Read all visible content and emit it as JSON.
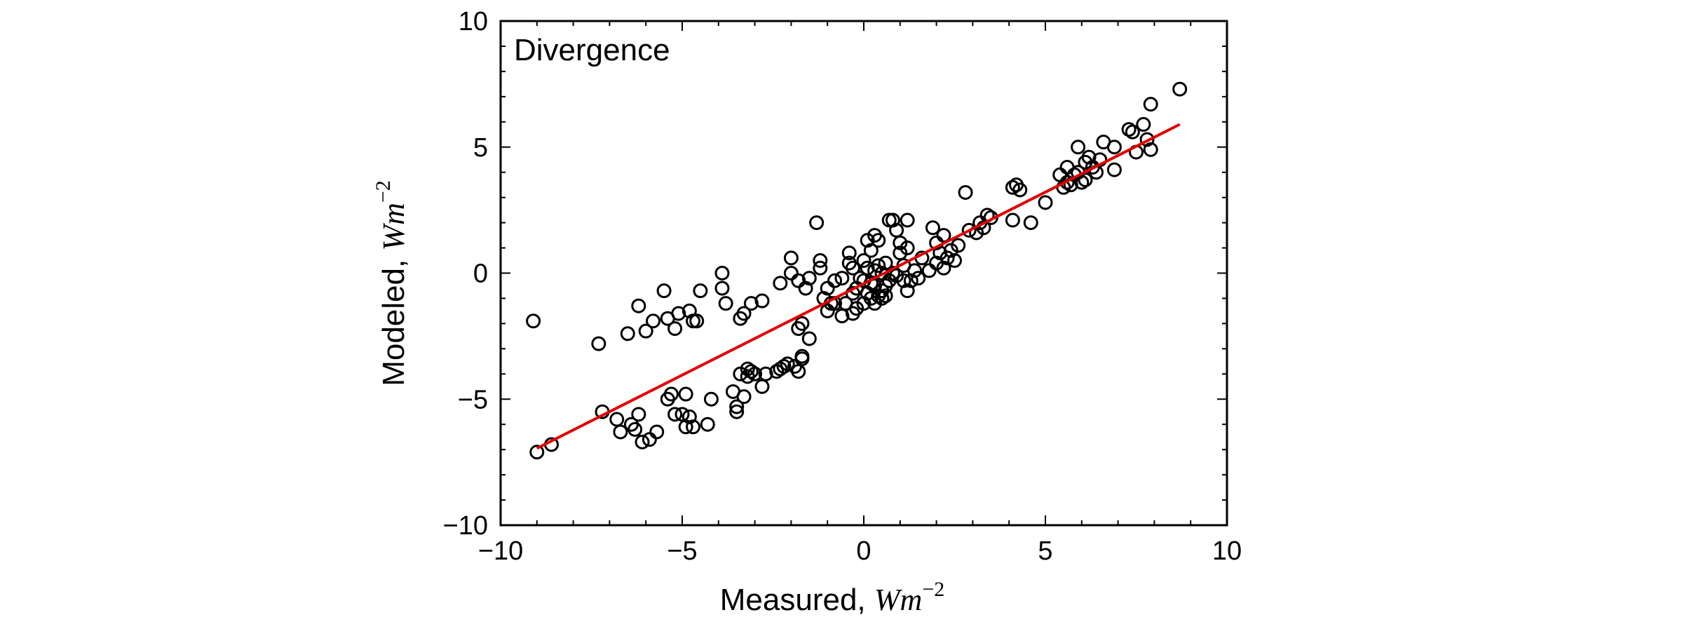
{
  "chart_data": {
    "type": "scatter",
    "annotation": "Divergence",
    "xlabel": {
      "text": "Measured, ",
      "unit": "Wm",
      "exponent": "−2"
    },
    "ylabel": {
      "text": "Modeled, ",
      "unit": "Wm",
      "exponent": "−2"
    },
    "xlim": [
      -10,
      10
    ],
    "ylim": [
      -10,
      10
    ],
    "x_ticks": [
      -10,
      -5,
      0,
      5,
      10
    ],
    "y_ticks": [
      -10,
      -5,
      0,
      5,
      10
    ],
    "x_tick_labels": [
      "−10",
      "−5",
      "0",
      "5",
      "10"
    ],
    "y_tick_labels": [
      "−10",
      "−5",
      "0",
      "5",
      "10"
    ],
    "grid": false,
    "marker_color": "#000000",
    "line_color": "#e00000",
    "fit_line": {
      "x": [
        -9.0,
        8.7
      ],
      "y": [
        -6.95,
        5.9
      ]
    },
    "points": [
      [
        -9.1,
        -1.9
      ],
      [
        -9.0,
        -7.1
      ],
      [
        -8.6,
        -6.8
      ],
      [
        -7.3,
        -2.8
      ],
      [
        -7.2,
        -5.5
      ],
      [
        -6.8,
        -5.8
      ],
      [
        -6.7,
        -6.3
      ],
      [
        -6.5,
        -2.4
      ],
      [
        -6.4,
        -6.0
      ],
      [
        -6.3,
        -6.2
      ],
      [
        -6.2,
        -1.3
      ],
      [
        -6.2,
        -5.6
      ],
      [
        -6.1,
        -6.7
      ],
      [
        -6.0,
        -2.3
      ],
      [
        -5.9,
        -6.6
      ],
      [
        -5.8,
        -1.9
      ],
      [
        -5.7,
        -6.3
      ],
      [
        -5.5,
        -0.7
      ],
      [
        -5.4,
        -5.0
      ],
      [
        -5.4,
        -1.8
      ],
      [
        -5.3,
        -4.8
      ],
      [
        -5.2,
        -5.6
      ],
      [
        -5.2,
        -2.2
      ],
      [
        -5.1,
        -1.6
      ],
      [
        -5.0,
        -5.6
      ],
      [
        -4.9,
        -4.8
      ],
      [
        -4.9,
        -6.1
      ],
      [
        -4.8,
        -1.5
      ],
      [
        -4.8,
        -5.7
      ],
      [
        -4.7,
        -1.9
      ],
      [
        -4.7,
        -6.1
      ],
      [
        -4.6,
        -1.9
      ],
      [
        -4.5,
        -0.7
      ],
      [
        -4.3,
        -6.0
      ],
      [
        -4.2,
        -5.0
      ],
      [
        -3.9,
        0.0
      ],
      [
        -3.9,
        -0.6
      ],
      [
        -3.8,
        -1.2
      ],
      [
        -3.6,
        -4.7
      ],
      [
        -3.5,
        -5.3
      ],
      [
        -3.5,
        -5.5
      ],
      [
        -3.4,
        -4.0
      ],
      [
        -3.4,
        -1.8
      ],
      [
        -3.3,
        -1.6
      ],
      [
        -3.3,
        -4.9
      ],
      [
        -3.2,
        -3.8
      ],
      [
        -3.2,
        -4.1
      ],
      [
        -3.1,
        -1.2
      ],
      [
        -3.1,
        -3.9
      ],
      [
        -3.0,
        -4.0
      ],
      [
        -2.8,
        -1.1
      ],
      [
        -2.8,
        -4.5
      ],
      [
        -2.7,
        -4.0
      ],
      [
        -2.4,
        -3.9
      ],
      [
        -2.3,
        -3.8
      ],
      [
        -2.3,
        -0.4
      ],
      [
        -2.2,
        -3.7
      ],
      [
        -2.1,
        -3.6
      ],
      [
        -2.0,
        0.6
      ],
      [
        -2.0,
        0.0
      ],
      [
        -1.9,
        -3.7
      ],
      [
        -1.8,
        -2.2
      ],
      [
        -1.8,
        -3.9
      ],
      [
        -1.8,
        -0.3
      ],
      [
        -1.7,
        -3.4
      ],
      [
        -1.7,
        -2.0
      ],
      [
        -1.7,
        -3.3
      ],
      [
        -1.6,
        -0.6
      ],
      [
        -1.5,
        -0.2
      ],
      [
        -1.5,
        -2.6
      ],
      [
        -1.3,
        2.0
      ],
      [
        -1.2,
        0.5
      ],
      [
        -1.2,
        0.2
      ],
      [
        -1.1,
        -1.0
      ],
      [
        -1.0,
        -1.5
      ],
      [
        -1.0,
        -0.6
      ],
      [
        -0.9,
        -1.2
      ],
      [
        -0.8,
        -1.2
      ],
      [
        -0.8,
        -0.3
      ],
      [
        -0.6,
        -1.7
      ],
      [
        -0.6,
        -0.2
      ],
      [
        -0.5,
        -1.2
      ],
      [
        -0.4,
        0.8
      ],
      [
        -0.4,
        0.4
      ],
      [
        -0.3,
        -1.6
      ],
      [
        -0.3,
        -0.8
      ],
      [
        -0.3,
        0.2
      ],
      [
        -0.2,
        -1.4
      ],
      [
        -0.2,
        -0.6
      ],
      [
        -0.1,
        -0.2
      ],
      [
        0.0,
        -1.2
      ],
      [
        0.0,
        -0.3
      ],
      [
        0.0,
        0.5
      ],
      [
        0.1,
        1.3
      ],
      [
        0.1,
        -0.8
      ],
      [
        0.1,
        0.2
      ],
      [
        0.2,
        -1.0
      ],
      [
        0.2,
        -0.4
      ],
      [
        0.2,
        0.9
      ],
      [
        0.3,
        1.5
      ],
      [
        0.3,
        -1.2
      ],
      [
        0.3,
        -0.5
      ],
      [
        0.3,
        0.1
      ],
      [
        0.4,
        -0.9
      ],
      [
        0.4,
        1.3
      ],
      [
        0.4,
        0.3
      ],
      [
        0.5,
        -0.7
      ],
      [
        0.5,
        -1.0
      ],
      [
        0.5,
        0.0
      ],
      [
        0.6,
        -0.5
      ],
      [
        0.6,
        -0.9
      ],
      [
        0.6,
        0.4
      ],
      [
        0.7,
        -0.3
      ],
      [
        0.7,
        2.1
      ],
      [
        0.8,
        2.1
      ],
      [
        0.8,
        0.0
      ],
      [
        0.9,
        1.7
      ],
      [
        0.9,
        -0.1
      ],
      [
        1.0,
        0.8
      ],
      [
        1.0,
        1.2
      ],
      [
        1.1,
        -0.3
      ],
      [
        1.1,
        0.3
      ],
      [
        1.2,
        -0.7
      ],
      [
        1.2,
        2.1
      ],
      [
        1.2,
        1.0
      ],
      [
        1.3,
        -0.3
      ],
      [
        1.4,
        0.1
      ],
      [
        1.5,
        -0.2
      ],
      [
        1.6,
        0.6
      ],
      [
        1.8,
        0.1
      ],
      [
        1.9,
        1.8
      ],
      [
        2.0,
        0.4
      ],
      [
        2.0,
        1.2
      ],
      [
        2.1,
        0.8
      ],
      [
        2.2,
        1.5
      ],
      [
        2.2,
        0.2
      ],
      [
        2.3,
        0.6
      ],
      [
        2.4,
        0.9
      ],
      [
        2.5,
        0.5
      ],
      [
        2.6,
        1.1
      ],
      [
        2.8,
        3.2
      ],
      [
        2.9,
        1.7
      ],
      [
        3.1,
        1.6
      ],
      [
        3.2,
        2.0
      ],
      [
        3.3,
        1.8
      ],
      [
        3.4,
        2.3
      ],
      [
        3.5,
        2.2
      ],
      [
        4.1,
        3.4
      ],
      [
        4.1,
        2.1
      ],
      [
        4.2,
        3.5
      ],
      [
        4.3,
        3.3
      ],
      [
        4.6,
        2.0
      ],
      [
        5.0,
        2.8
      ],
      [
        5.4,
        3.9
      ],
      [
        5.5,
        3.4
      ],
      [
        5.6,
        4.2
      ],
      [
        5.6,
        3.6
      ],
      [
        5.7,
        3.5
      ],
      [
        5.8,
        3.9
      ],
      [
        5.9,
        5.0
      ],
      [
        5.9,
        4.0
      ],
      [
        6.0,
        3.6
      ],
      [
        6.1,
        3.7
      ],
      [
        6.1,
        4.4
      ],
      [
        6.2,
        4.6
      ],
      [
        6.3,
        4.2
      ],
      [
        6.4,
        4.0
      ],
      [
        6.5,
        4.5
      ],
      [
        6.6,
        5.2
      ],
      [
        6.9,
        5.0
      ],
      [
        6.9,
        4.1
      ],
      [
        7.3,
        5.7
      ],
      [
        7.4,
        5.6
      ],
      [
        7.5,
        4.8
      ],
      [
        7.7,
        5.9
      ],
      [
        7.8,
        5.3
      ],
      [
        7.9,
        6.7
      ],
      [
        7.9,
        4.9
      ],
      [
        8.7,
        7.3
      ]
    ]
  }
}
